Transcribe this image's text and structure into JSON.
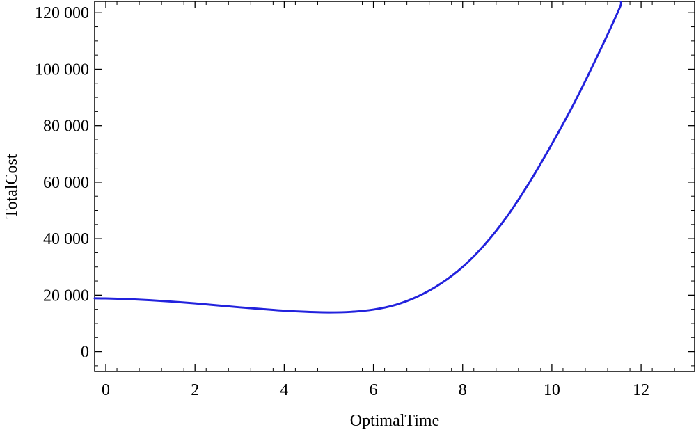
{
  "chart_data": {
    "type": "line",
    "title": "",
    "xlabel": "OptimalTime",
    "ylabel": "TotalCost",
    "xlim": [
      -0.25,
      13.2
    ],
    "ylim": [
      -7000,
      124000
    ],
    "x_ticks": [
      0,
      2,
      4,
      6,
      8,
      10,
      12
    ],
    "x_tick_labels": [
      "0",
      "2",
      "4",
      "6",
      "8",
      "10",
      "12"
    ],
    "y_ticks": [
      0,
      20000,
      40000,
      60000,
      80000,
      100000,
      120000
    ],
    "y_tick_labels": [
      "0",
      "20 000",
      "40 000",
      "60 000",
      "80 000",
      "100 000",
      "120 000"
    ],
    "grid": false,
    "frame": true,
    "series": [
      {
        "color": "#2222dd",
        "x": [
          -0.25,
          0,
          0.5,
          1,
          1.5,
          2,
          2.5,
          3,
          3.5,
          4,
          4.5,
          5,
          5.5,
          6,
          6.5,
          7,
          7.5,
          8,
          8.5,
          9,
          9.5,
          10,
          10.5,
          11,
          11.5,
          11.55
        ],
        "y": [
          18900,
          18850,
          18600,
          18200,
          17700,
          17100,
          16400,
          15700,
          15100,
          14500,
          14100,
          13900,
          14100,
          14900,
          16600,
          19600,
          24000,
          30000,
          38000,
          48000,
          60000,
          73500,
          88000,
          104000,
          121000,
          123800
        ]
      }
    ]
  }
}
